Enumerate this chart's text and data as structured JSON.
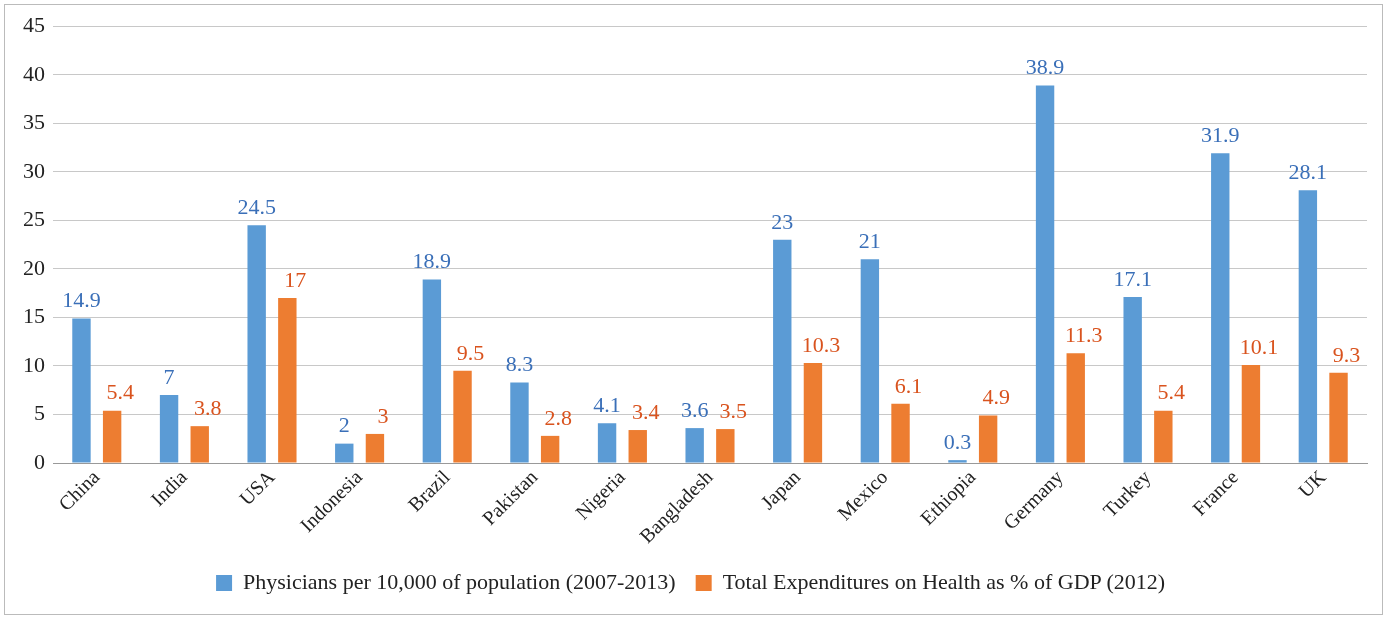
{
  "chart_data": {
    "type": "bar",
    "categories": [
      "China",
      "India",
      "USA",
      "Indonesia",
      "Brazil",
      "Pakistan",
      "Nigeria",
      "Bangladesh",
      "Japan",
      "Mexico",
      "Ethiopia",
      "Germany",
      "Turkey",
      "France",
      "UK"
    ],
    "series": [
      {
        "name": "Physicians per 10,000 of population (2007-2013)",
        "color": "#5b9bd5",
        "values": [
          14.9,
          7,
          24.5,
          2,
          18.9,
          8.3,
          4.1,
          3.6,
          23,
          21,
          0.3,
          38.9,
          17.1,
          31.9,
          28.1
        ]
      },
      {
        "name": "Total Expenditures on Health as % of GDP (2012)",
        "color": "#ed7d31",
        "values": [
          5.4,
          3.8,
          17,
          3,
          9.5,
          2.8,
          3.4,
          3.5,
          10.3,
          6.1,
          4.9,
          11.3,
          5.4,
          10.1,
          9.3
        ]
      }
    ],
    "ylim": [
      0,
      45
    ],
    "yticks": [
      0,
      5,
      10,
      15,
      20,
      25,
      30,
      35,
      40,
      45
    ],
    "grid": "y",
    "legend": "bottom",
    "data_labels": true
  }
}
